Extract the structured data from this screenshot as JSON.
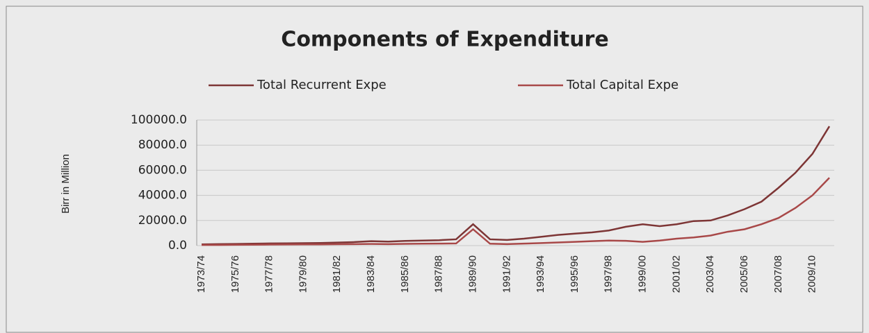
{
  "chart_data": {
    "type": "line",
    "title": "Components of Expenditure",
    "y_label": "Birr in Million",
    "categories": [
      "1973/74",
      null,
      "1975/76",
      null,
      "1977/78",
      null,
      "1979/80",
      null,
      "1981/82",
      null,
      "1983/84",
      null,
      "1985/86",
      null,
      "1987/88",
      null,
      "1989/90",
      null,
      "1991/92",
      null,
      "1993/94",
      null,
      "1995/96",
      null,
      "1997/98",
      null,
      "1999/00",
      null,
      "2001/02",
      null,
      "2003/04",
      null,
      "2005/06",
      null,
      "2007/08",
      null,
      "2009/10",
      null
    ],
    "series": [
      {
        "name": "Total Recurrent Expe",
        "color": "#7d3535",
        "values": [
          1000,
          1200,
          1300,
          1500,
          1700,
          1800,
          1900,
          2100,
          2400,
          2800,
          3500,
          3200,
          3700,
          4000,
          4300,
          5000,
          17000,
          5000,
          4500,
          5500,
          7000,
          8500,
          9500,
          10500,
          12000,
          15000,
          17000,
          15500,
          17000,
          19500,
          20000,
          24000,
          29000,
          35000,
          46000,
          58000,
          73000,
          95000
        ]
      },
      {
        "name": "Total Capital Expe",
        "color": "#a84848",
        "values": [
          500,
          500,
          600,
          700,
          800,
          900,
          1000,
          1000,
          1100,
          1200,
          1300,
          1200,
          1400,
          1500,
          1600,
          1700,
          13000,
          1500,
          1200,
          1600,
          2000,
          2500,
          3000,
          3500,
          4000,
          3800,
          3000,
          4000,
          5500,
          6500,
          8000,
          11000,
          13000,
          17000,
          22000,
          30000,
          40000,
          54000
        ]
      }
    ],
    "ylim": [
      0,
      100000
    ],
    "yticks": [
      {
        "value": 0,
        "label": "0.0"
      },
      {
        "value": 20000,
        "label": "20000.0"
      },
      {
        "value": 40000,
        "label": "40000.0"
      },
      {
        "value": 60000,
        "label": "60000.0"
      },
      {
        "value": 80000,
        "label": "80000.0"
      },
      {
        "value": 100000,
        "label": "100000.0"
      }
    ],
    "grid": true,
    "legend": "top"
  }
}
